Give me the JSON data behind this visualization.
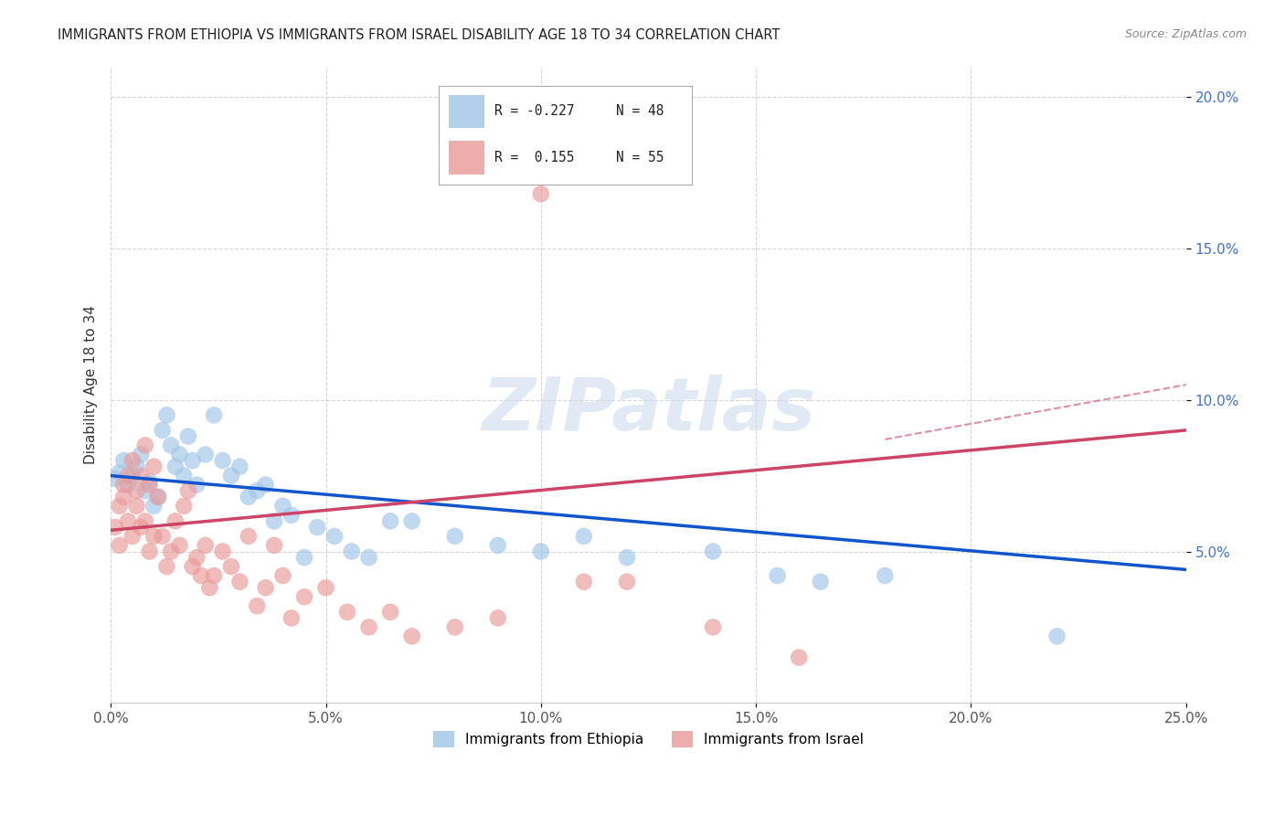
{
  "title": "IMMIGRANTS FROM ETHIOPIA VS IMMIGRANTS FROM ISRAEL DISABILITY AGE 18 TO 34 CORRELATION CHART",
  "source": "Source: ZipAtlas.com",
  "ylabel": "Disability Age 18 to 34",
  "xlim": [
    0.0,
    0.25
  ],
  "ylim": [
    0.0,
    0.21
  ],
  "x_ticks": [
    0.0,
    0.05,
    0.1,
    0.15,
    0.2,
    0.25
  ],
  "x_tick_labels": [
    "0.0%",
    "5.0%",
    "10.0%",
    "15.0%",
    "20.0%",
    "25.0%"
  ],
  "y_ticks": [
    0.05,
    0.1,
    0.15,
    0.2
  ],
  "y_tick_labels": [
    "5.0%",
    "10.0%",
    "15.0%",
    "20.0%"
  ],
  "ethiopia_color": "#9fc5e8",
  "israel_color": "#ea9999",
  "ethiopia_line_color": "#1155cc",
  "israel_line_color": "#cc4466",
  "watermark": "ZIPatlas",
  "legend_r_eth": "R = -0.227",
  "legend_n_eth": "N = 48",
  "legend_r_isr": "R =  0.155",
  "legend_n_isr": "N = 55",
  "ethiopia_x": [
    0.001,
    0.002,
    0.003,
    0.004,
    0.005,
    0.006,
    0.007,
    0.008,
    0.009,
    0.01,
    0.011,
    0.012,
    0.013,
    0.014,
    0.015,
    0.016,
    0.017,
    0.018,
    0.019,
    0.02,
    0.022,
    0.024,
    0.026,
    0.028,
    0.03,
    0.032,
    0.034,
    0.036,
    0.038,
    0.04,
    0.042,
    0.045,
    0.048,
    0.052,
    0.056,
    0.06,
    0.065,
    0.07,
    0.08,
    0.09,
    0.1,
    0.11,
    0.12,
    0.14,
    0.155,
    0.165,
    0.18,
    0.22
  ],
  "ethiopia_y": [
    0.074,
    0.076,
    0.08,
    0.072,
    0.075,
    0.078,
    0.082,
    0.07,
    0.073,
    0.065,
    0.068,
    0.09,
    0.095,
    0.085,
    0.078,
    0.082,
    0.075,
    0.088,
    0.08,
    0.072,
    0.082,
    0.095,
    0.08,
    0.075,
    0.078,
    0.068,
    0.07,
    0.072,
    0.06,
    0.065,
    0.062,
    0.048,
    0.058,
    0.055,
    0.05,
    0.048,
    0.06,
    0.06,
    0.055,
    0.052,
    0.05,
    0.055,
    0.048,
    0.05,
    0.042,
    0.04,
    0.042,
    0.022
  ],
  "israel_x": [
    0.001,
    0.002,
    0.002,
    0.003,
    0.003,
    0.004,
    0.004,
    0.005,
    0.005,
    0.006,
    0.006,
    0.007,
    0.007,
    0.008,
    0.008,
    0.009,
    0.009,
    0.01,
    0.01,
    0.011,
    0.012,
    0.013,
    0.014,
    0.015,
    0.016,
    0.017,
    0.018,
    0.019,
    0.02,
    0.021,
    0.022,
    0.023,
    0.024,
    0.026,
    0.028,
    0.03,
    0.032,
    0.034,
    0.036,
    0.038,
    0.04,
    0.042,
    0.045,
    0.05,
    0.055,
    0.06,
    0.065,
    0.07,
    0.08,
    0.09,
    0.1,
    0.11,
    0.12,
    0.14,
    0.16
  ],
  "israel_y": [
    0.058,
    0.065,
    0.052,
    0.068,
    0.072,
    0.06,
    0.075,
    0.055,
    0.08,
    0.07,
    0.065,
    0.058,
    0.075,
    0.06,
    0.085,
    0.05,
    0.072,
    0.078,
    0.055,
    0.068,
    0.055,
    0.045,
    0.05,
    0.06,
    0.052,
    0.065,
    0.07,
    0.045,
    0.048,
    0.042,
    0.052,
    0.038,
    0.042,
    0.05,
    0.045,
    0.04,
    0.055,
    0.032,
    0.038,
    0.052,
    0.042,
    0.028,
    0.035,
    0.038,
    0.03,
    0.025,
    0.03,
    0.022,
    0.025,
    0.028,
    0.168,
    0.04,
    0.04,
    0.025,
    0.015
  ],
  "eth_trendline_x": [
    0.0,
    0.25
  ],
  "eth_trendline_y": [
    0.075,
    0.044
  ],
  "isr_trendline_x": [
    0.0,
    0.25
  ],
  "isr_trendline_y": [
    0.057,
    0.09
  ]
}
